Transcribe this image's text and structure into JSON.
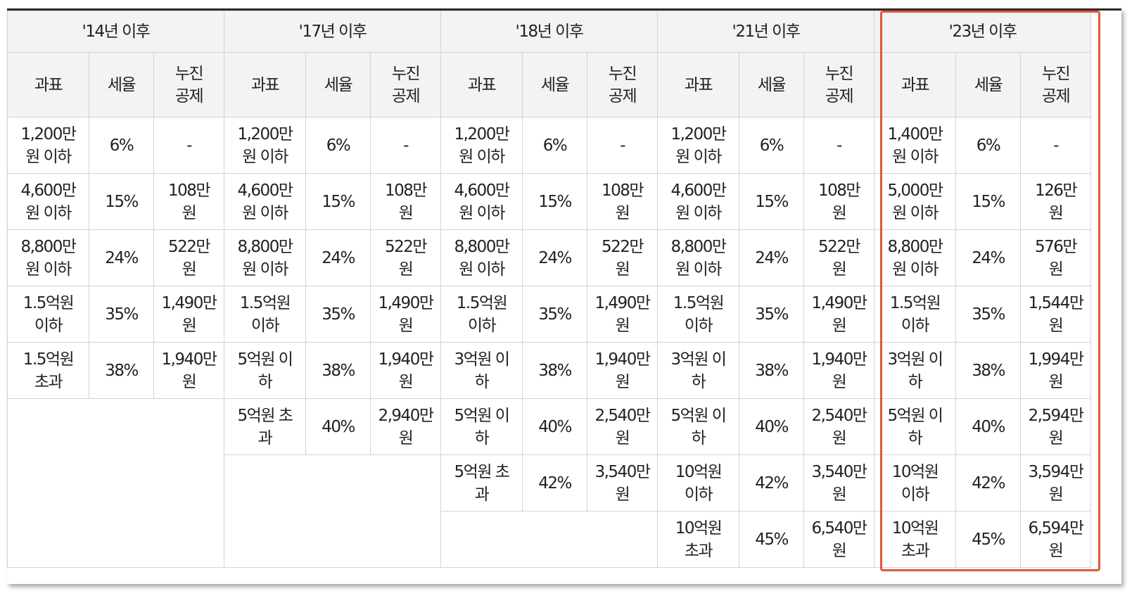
{
  "periods": [
    "'14년 이후",
    "'17년 이후",
    "'18년 이후",
    "'21년 이후",
    "'23년 이후"
  ],
  "subheaders": {
    "base": "과표",
    "rate": "세율",
    "deduction": "누진\n공제"
  },
  "rows": [
    [
      {
        "base": "1,200만\n원 이하",
        "rate": "6%",
        "deduction": "-"
      },
      {
        "base": "1,200만\n원 이하",
        "rate": "6%",
        "deduction": "-"
      },
      {
        "base": "1,200만\n원 이하",
        "rate": "6%",
        "deduction": "-"
      },
      {
        "base": "1,200만\n원 이하",
        "rate": "6%",
        "deduction": "-"
      },
      {
        "base": "1,400만\n원 이하",
        "rate": "6%",
        "deduction": "-"
      }
    ],
    [
      {
        "base": "4,600만\n원 이하",
        "rate": "15%",
        "deduction": "108만\n원"
      },
      {
        "base": "4,600만\n원 이하",
        "rate": "15%",
        "deduction": "108만\n원"
      },
      {
        "base": "4,600만\n원 이하",
        "rate": "15%",
        "deduction": "108만\n원"
      },
      {
        "base": "4,600만\n원 이하",
        "rate": "15%",
        "deduction": "108만\n원"
      },
      {
        "base": "5,000만\n원 이하",
        "rate": "15%",
        "deduction": "126만\n원"
      }
    ],
    [
      {
        "base": "8,800만\n원 이하",
        "rate": "24%",
        "deduction": "522만\n원"
      },
      {
        "base": "8,800만\n원 이하",
        "rate": "24%",
        "deduction": "522만\n원"
      },
      {
        "base": "8,800만\n원 이하",
        "rate": "24%",
        "deduction": "522만\n원"
      },
      {
        "base": "8,800만\n원 이하",
        "rate": "24%",
        "deduction": "522만\n원"
      },
      {
        "base": "8,800만\n원 이하",
        "rate": "24%",
        "deduction": "576만\n원"
      }
    ],
    [
      {
        "base": "1.5억원\n이하",
        "rate": "35%",
        "deduction": "1,490만\n원"
      },
      {
        "base": "1.5억원\n이하",
        "rate": "35%",
        "deduction": "1,490만\n원"
      },
      {
        "base": "1.5억원\n이하",
        "rate": "35%",
        "deduction": "1,490만\n원"
      },
      {
        "base": "1.5억원\n이하",
        "rate": "35%",
        "deduction": "1,490만\n원"
      },
      {
        "base": "1.5억원\n이하",
        "rate": "35%",
        "deduction": "1,544만\n원"
      }
    ],
    [
      {
        "base": "1.5억원\n초과",
        "rate": "38%",
        "deduction": "1,940만\n원"
      },
      {
        "base": "5억원 이\n하",
        "rate": "38%",
        "deduction": "1,940만\n원"
      },
      {
        "base": "3억원 이\n하",
        "rate": "38%",
        "deduction": "1,940만\n원"
      },
      {
        "base": "3억원 이\n하",
        "rate": "38%",
        "deduction": "1,940만\n원"
      },
      {
        "base": "3억원 이\n하",
        "rate": "38%",
        "deduction": "1,994만\n원"
      }
    ],
    [
      null,
      {
        "base": "5억원 초\n과",
        "rate": "40%",
        "deduction": "2,940만\n원"
      },
      {
        "base": "5억원 이\n하",
        "rate": "40%",
        "deduction": "2,540만\n원"
      },
      {
        "base": "5억원 이\n하",
        "rate": "40%",
        "deduction": "2,540만\n원"
      },
      {
        "base": "5억원 이\n하",
        "rate": "40%",
        "deduction": "2,594만\n원"
      }
    ],
    [
      null,
      null,
      {
        "base": "5억원 초\n과",
        "rate": "42%",
        "deduction": "3,540만\n원"
      },
      {
        "base": "10억원\n이하",
        "rate": "42%",
        "deduction": "3,540만\n원"
      },
      {
        "base": "10억원\n이하",
        "rate": "42%",
        "deduction": "3,594만\n원"
      }
    ],
    [
      null,
      null,
      null,
      {
        "base": "10억원\n초과",
        "rate": "45%",
        "deduction": "6,540만\n원"
      },
      {
        "base": "10억원\n초과",
        "rate": "45%",
        "deduction": "6,594만\n원"
      }
    ]
  ],
  "highlight_color": "#e0563f"
}
